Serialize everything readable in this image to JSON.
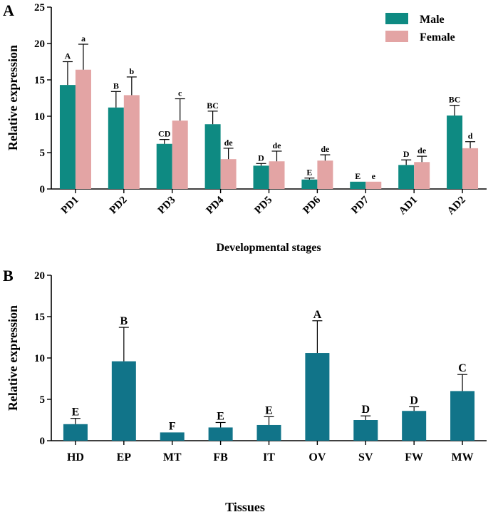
{
  "chart_data": [
    {
      "panel": "A",
      "type": "bar",
      "title": "",
      "xlabel": "Developmental stages",
      "ylabel": "Relative expression",
      "ylim": [
        0,
        25
      ],
      "yticks": [
        0,
        5,
        10,
        15,
        20,
        25
      ],
      "legend_position": "top-right",
      "categories": [
        "PD1",
        "PD2",
        "PD3",
        "PD4",
        "PD5",
        "PD6",
        "PD7",
        "AD1",
        "AD2"
      ],
      "series": [
        {
          "name": "Male",
          "color": "#0e8a82",
          "values": [
            14.3,
            11.2,
            6.2,
            8.9,
            3.2,
            1.3,
            1.0,
            3.3,
            10.1
          ],
          "errors": [
            3.2,
            2.2,
            0.6,
            1.8,
            0.3,
            0.2,
            0.0,
            0.7,
            1.4
          ],
          "letters": [
            "A",
            "B",
            "CD",
            "BC",
            "D",
            "E",
            "E",
            "D",
            "BC"
          ]
        },
        {
          "name": "Female",
          "color": "#e3a4a4",
          "values": [
            16.4,
            12.9,
            9.4,
            4.1,
            3.8,
            3.9,
            1.0,
            3.7,
            5.6
          ],
          "errors": [
            3.5,
            2.5,
            3.0,
            1.5,
            1.4,
            0.8,
            0.0,
            0.8,
            0.9
          ],
          "letters": [
            "a",
            "b",
            "c",
            "de",
            "de",
            "de",
            "e",
            "de",
            "d"
          ]
        }
      ]
    },
    {
      "panel": "B",
      "type": "bar",
      "title": "",
      "xlabel": "Tissues",
      "ylabel": "Relative expression",
      "ylim": [
        0,
        20
      ],
      "yticks": [
        0,
        5,
        10,
        15,
        20
      ],
      "categories": [
        "HD",
        "EP",
        "MT",
        "FB",
        "IT",
        "OV",
        "SV",
        "FW",
        "MW"
      ],
      "series": [
        {
          "name": "Tissues",
          "color": "#117489",
          "values": [
            2.0,
            9.6,
            1.0,
            1.6,
            1.9,
            10.6,
            2.5,
            3.6,
            6.0
          ],
          "errors": [
            0.7,
            4.1,
            0.0,
            0.6,
            1.0,
            3.9,
            0.5,
            0.5,
            2.0
          ],
          "letters": [
            "E",
            "B",
            "F",
            "E",
            "E",
            "A",
            "D",
            "D",
            "C"
          ]
        }
      ]
    }
  ]
}
